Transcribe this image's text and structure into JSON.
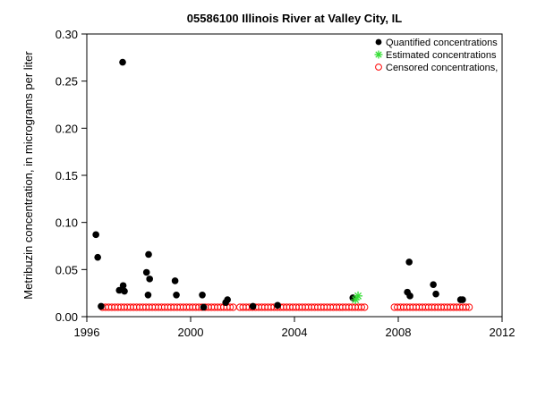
{
  "chart_data": {
    "type": "scatter",
    "title": "05586100 Illinois River at Valley City, IL",
    "xlabel": "",
    "ylabel": "Metribuzin concentration, in micrograms per liter",
    "xlim": [
      1996,
      2012
    ],
    "ylim": [
      0,
      0.3
    ],
    "x_ticks": [
      1996,
      2000,
      2004,
      2008,
      2012
    ],
    "y_ticks": [
      "0.00",
      "0.05",
      "0.10",
      "0.15",
      "0.20",
      "0.25",
      "0.30"
    ],
    "legend_position": "top-right",
    "series": [
      {
        "name": "Quantified concentrations",
        "marker": "filled-circle",
        "color": "#000000",
        "points": [
          [
            1996.35,
            0.087
          ],
          [
            1996.42,
            0.063
          ],
          [
            1996.55,
            0.011
          ],
          [
            1997.25,
            0.028
          ],
          [
            1997.38,
            0.27
          ],
          [
            1997.4,
            0.033
          ],
          [
            1997.45,
            0.027
          ],
          [
            1998.3,
            0.047
          ],
          [
            1998.36,
            0.023
          ],
          [
            1998.38,
            0.066
          ],
          [
            1998.42,
            0.04
          ],
          [
            1999.4,
            0.038
          ],
          [
            1999.45,
            0.023
          ],
          [
            2000.45,
            0.023
          ],
          [
            2000.5,
            0.01
          ],
          [
            2001.35,
            0.015
          ],
          [
            2001.42,
            0.018
          ],
          [
            2002.4,
            0.011
          ],
          [
            2003.35,
            0.012
          ],
          [
            2006.25,
            0.02
          ],
          [
            2008.35,
            0.026
          ],
          [
            2008.42,
            0.058
          ],
          [
            2008.45,
            0.022
          ],
          [
            2009.35,
            0.034
          ],
          [
            2009.45,
            0.024
          ],
          [
            2010.4,
            0.018
          ],
          [
            2010.48,
            0.018
          ]
        ]
      },
      {
        "name": "Estimated concentrations",
        "marker": "asterisk",
        "color": "#33dd33",
        "points": [
          [
            2006.35,
            0.018
          ],
          [
            2006.45,
            0.022
          ]
        ]
      },
      {
        "name": "Censored concentrations, l",
        "marker": "open-circle",
        "color": "#ff0000",
        "value": 0.01,
        "ranges": [
          [
            1996.6,
            2001.7,
            0.12
          ],
          [
            2001.9,
            2006.8,
            0.12
          ],
          [
            2007.85,
            2010.75,
            0.12
          ]
        ]
      }
    ]
  }
}
